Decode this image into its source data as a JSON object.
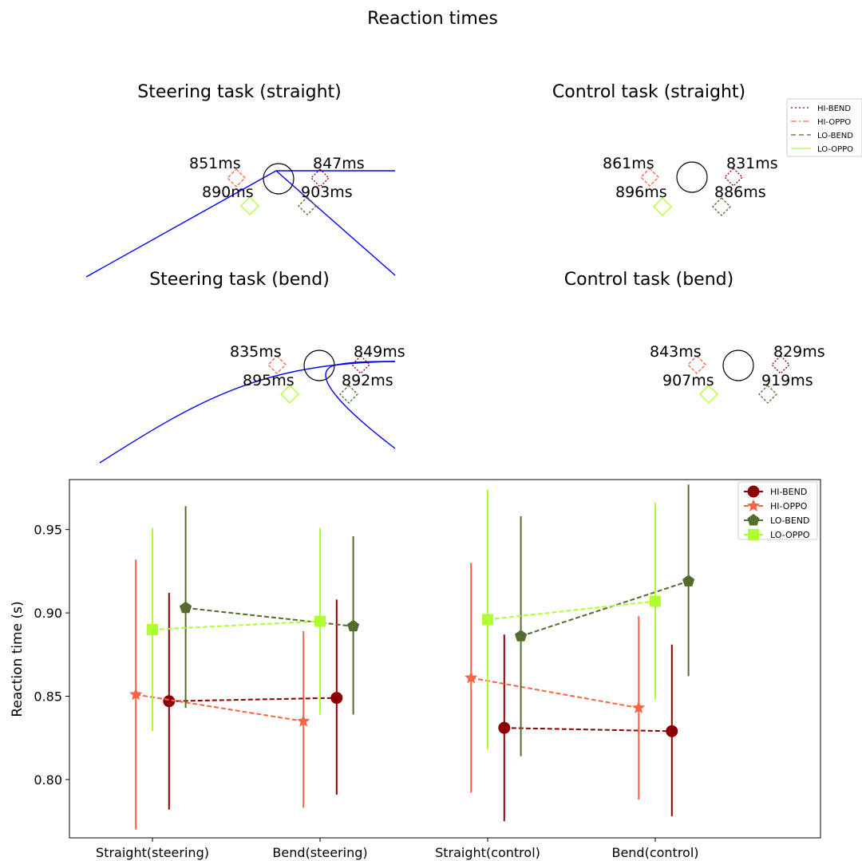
{
  "title": "Reaction times",
  "legend_small": [
    {
      "name": "HI-BEND",
      "color": "#8b0000",
      "dash": "2,3"
    },
    {
      "name": "HI-OPPO",
      "color": "#ff6347",
      "dash": "7,3,2,3"
    },
    {
      "name": "LO-BEND",
      "color": "#556b2f",
      "dash": "6,4"
    },
    {
      "name": "LO-OPPO",
      "color": "#adff2f",
      "dash": ""
    }
  ],
  "panels": [
    {
      "title": "Steering task (straight)",
      "labels": {
        "hi_oppo": "851ms",
        "hi_bend": "847ms",
        "lo_oppo": "890ms",
        "lo_bend": "903ms"
      },
      "road": "straight"
    },
    {
      "title": "Control task (straight)",
      "labels": {
        "hi_oppo": "861ms",
        "hi_bend": "831ms",
        "lo_oppo": "896ms",
        "lo_bend": "886ms"
      },
      "road": "none"
    },
    {
      "title": "Steering task (bend)",
      "labels": {
        "hi_oppo": "835ms",
        "hi_bend": "849ms",
        "lo_oppo": "895ms",
        "lo_bend": "892ms"
      },
      "road": "bend"
    },
    {
      "title": "Control task (bend)",
      "labels": {
        "hi_oppo": "843ms",
        "hi_bend": "829ms",
        "lo_oppo": "907ms",
        "lo_bend": "919ms"
      },
      "road": "none"
    }
  ],
  "chart_data": {
    "type": "line",
    "title": "",
    "xlabel": "",
    "ylabel": "Reaction time (s)",
    "categories": [
      "Straight(steering)",
      "Bend(steering)",
      "Straight(control)",
      "Bend(control)"
    ],
    "ylim": [
      0.765,
      0.98
    ],
    "yticks": [
      "0.80",
      "0.85",
      "0.90",
      "0.95"
    ],
    "legend_position": "top-right",
    "grid": false,
    "series": [
      {
        "name": "HI-BEND",
        "color": "#8b0000",
        "marker": "circle",
        "offset": 0.1,
        "values": [
          0.847,
          0.849,
          0.831,
          0.829
        ],
        "err_low": [
          0.782,
          0.791,
          0.775,
          0.778
        ],
        "err_high": [
          0.912,
          0.908,
          0.887,
          0.881
        ]
      },
      {
        "name": "HI-OPPO",
        "color": "#ff6347",
        "marker": "star",
        "offset": -0.1,
        "values": [
          0.851,
          0.835,
          0.861,
          0.843
        ],
        "err_low": [
          0.77,
          0.783,
          0.792,
          0.788
        ],
        "err_high": [
          0.932,
          0.889,
          0.93,
          0.898
        ]
      },
      {
        "name": "LO-BEND",
        "color": "#556b2f",
        "marker": "pentagon",
        "offset": 0.2,
        "values": [
          0.903,
          0.892,
          0.886,
          0.919
        ],
        "err_low": [
          0.843,
          0.839,
          0.814,
          0.862
        ],
        "err_high": [
          0.964,
          0.946,
          0.958,
          0.977
        ]
      },
      {
        "name": "LO-OPPO",
        "color": "#adff2f",
        "marker": "square",
        "offset": 0.0,
        "values": [
          0.89,
          0.895,
          0.896,
          0.907
        ],
        "err_low": [
          0.829,
          0.839,
          0.818,
          0.848
        ],
        "err_high": [
          0.951,
          0.951,
          0.974,
          0.966
        ]
      }
    ]
  }
}
